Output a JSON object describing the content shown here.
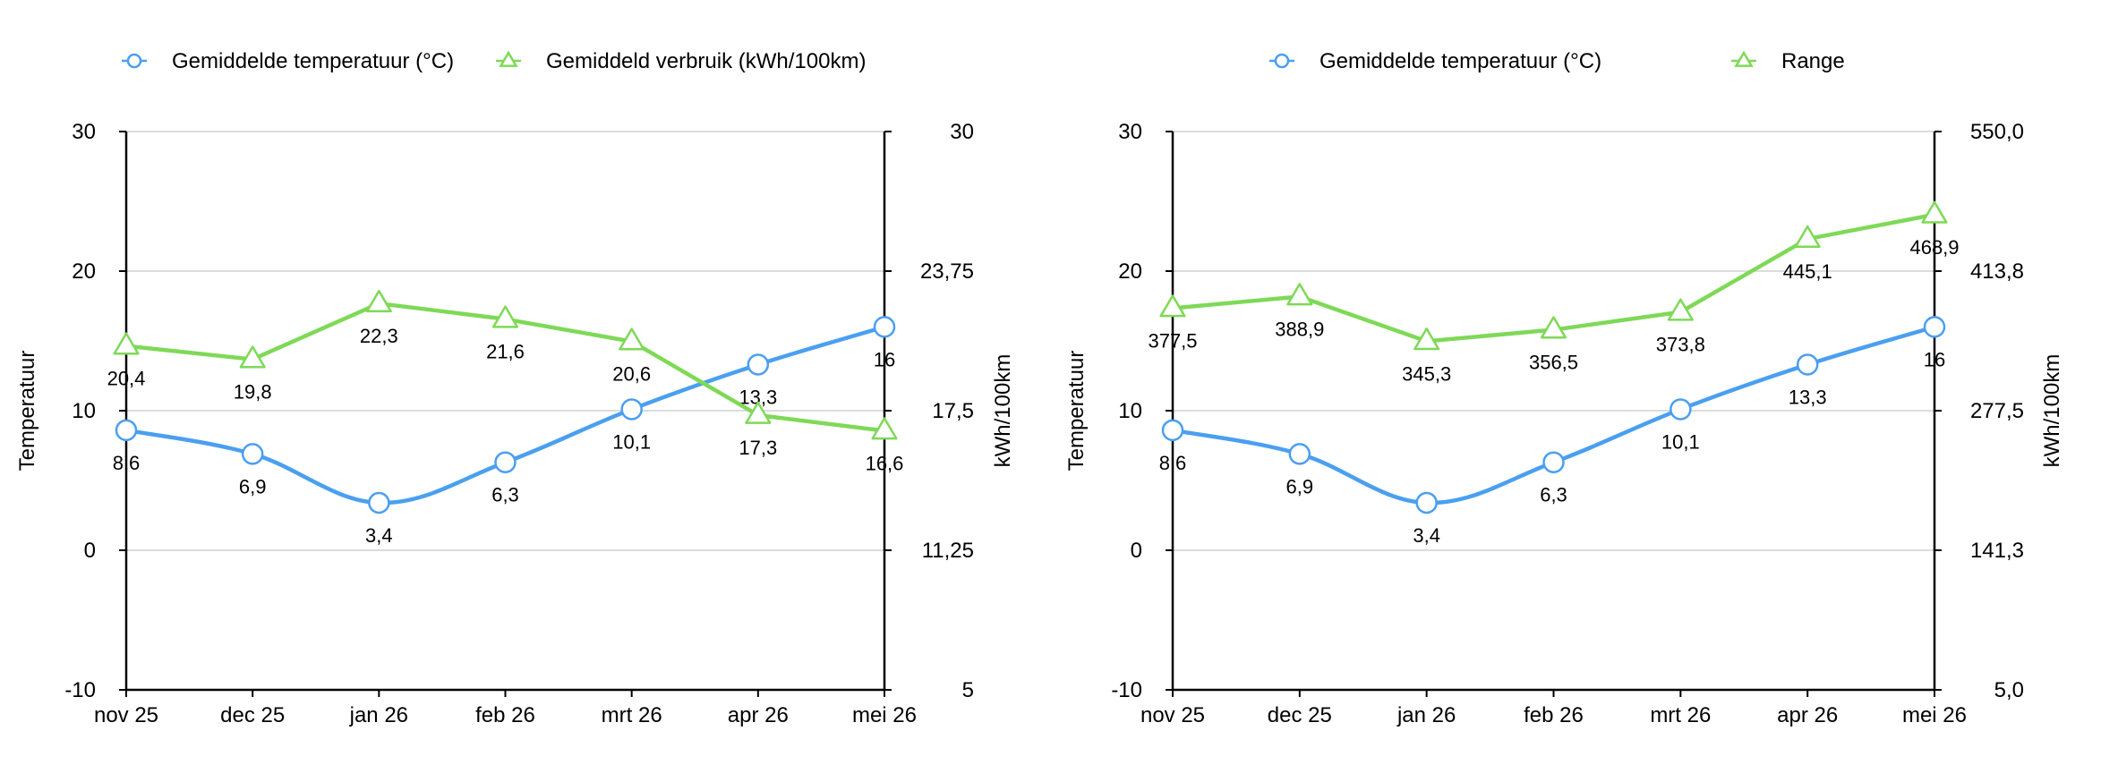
{
  "chart_data": [
    {
      "type": "line",
      "categories": [
        "nov 25",
        "dec 25",
        "jan 26",
        "feb 26",
        "mrt 26",
        "apr 26",
        "mei 26"
      ],
      "ylabel": "Temperatuur",
      "y2label": "kWh/100km",
      "ylim": [
        -10,
        30
      ],
      "y2lim": [
        5,
        30
      ],
      "yticks": [
        "30",
        "20",
        "10",
        "0",
        "-10"
      ],
      "y2ticks": [
        "30",
        "23,75",
        "17,5",
        "11,25",
        "5"
      ],
      "grid": true,
      "legend": "top",
      "series": [
        {
          "name": "Gemiddelde temperatuur (°C)",
          "axis": "left",
          "color": "#4a9ff0",
          "marker": "circle",
          "values": [
            8.6,
            6.9,
            3.4,
            6.3,
            10.1,
            13.3,
            16
          ],
          "labels": [
            "8,6",
            "6,9",
            "3,4",
            "6,3",
            "10,1",
            "13,3",
            "16"
          ]
        },
        {
          "name": "Gemiddeld verbruik (kWh/100km)",
          "axis": "right",
          "color": "#7ed957",
          "marker": "triangle",
          "values": [
            20.4,
            19.8,
            22.3,
            21.6,
            20.6,
            17.3,
            16.6
          ],
          "labels": [
            "20,4",
            "19,8",
            "22,3",
            "21,6",
            "20,6",
            "17,3",
            "16,6"
          ]
        }
      ]
    },
    {
      "type": "line",
      "categories": [
        "nov 25",
        "dec 25",
        "jan 26",
        "feb 26",
        "mrt 26",
        "apr 26",
        "mei 26"
      ],
      "ylabel": "Temperatuur",
      "y2label": "kWh/100km",
      "ylim": [
        -10,
        30
      ],
      "y2lim": [
        5,
        550
      ],
      "yticks": [
        "30",
        "20",
        "10",
        "0",
        "-10"
      ],
      "y2ticks": [
        "550,0",
        "413,8",
        "277,5",
        "141,3",
        "5,0"
      ],
      "grid": true,
      "legend": "top",
      "series": [
        {
          "name": "Gemiddelde temperatuur (°C)",
          "axis": "left",
          "color": "#4a9ff0",
          "marker": "circle",
          "values": [
            8.6,
            6.9,
            3.4,
            6.3,
            10.1,
            13.3,
            16
          ],
          "labels": [
            "8,6",
            "6,9",
            "3,4",
            "6,3",
            "10,1",
            "13,3",
            "16"
          ]
        },
        {
          "name": "Range",
          "axis": "right",
          "color": "#7ed957",
          "marker": "triangle",
          "values": [
            377.5,
            388.9,
            345.3,
            356.5,
            373.8,
            445.1,
            468.9
          ],
          "labels": [
            "377,5",
            "388,9",
            "345,3",
            "356,5",
            "373,8",
            "445,1",
            "468,9"
          ]
        }
      ]
    }
  ]
}
